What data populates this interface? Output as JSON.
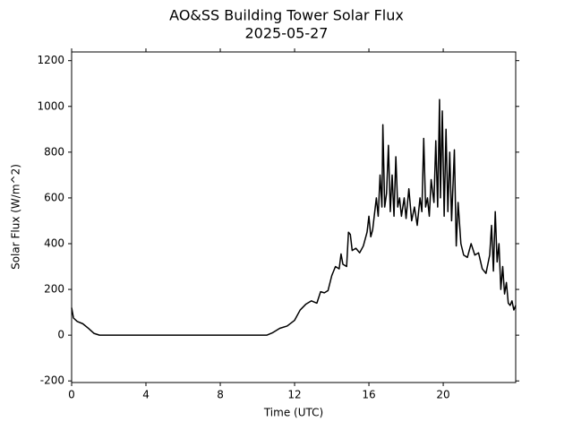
{
  "chart_data": {
    "type": "line",
    "title": "AO&SS Building Tower Solar Flux",
    "subtitle": "2025-05-27",
    "x_label": "Time (UTC)",
    "y_label": "Solar Flux (W/m^2)",
    "xlim": [
      0,
      23.9
    ],
    "ylim": [
      -207,
      1238
    ],
    "xticks": [
      0,
      4,
      8,
      12,
      16,
      20
    ],
    "yticks": [
      -200,
      0,
      200,
      400,
      600,
      800,
      1000,
      1200
    ],
    "grid": false,
    "series": [
      {
        "name": "Solar Flux",
        "color": "#000000",
        "x": [
          0,
          0.1,
          0.3,
          0.6,
          0.9,
          1.2,
          1.5,
          10.5,
          10.8,
          11.2,
          11.6,
          12,
          12.3,
          12.6,
          12.9,
          13.2,
          13.4,
          13.6,
          13.8,
          14,
          14.2,
          14.4,
          14.5,
          14.6,
          14.8,
          14.9,
          15.0,
          15.1,
          15.3,
          15.5,
          15.7,
          15.9,
          16.0,
          16.1,
          16.2,
          16.4,
          16.5,
          16.6,
          16.7,
          16.75,
          16.85,
          16.95,
          17.05,
          17.15,
          17.25,
          17.35,
          17.45,
          17.55,
          17.65,
          17.75,
          17.9,
          18.0,
          18.15,
          18.3,
          18.45,
          18.6,
          18.75,
          18.85,
          18.95,
          19.05,
          19.15,
          19.25,
          19.35,
          19.5,
          19.6,
          19.7,
          19.8,
          19.85,
          19.95,
          20.05,
          20.15,
          20.25,
          20.35,
          20.45,
          20.6,
          20.7,
          20.8,
          20.95,
          21.1,
          21.3,
          21.5,
          21.7,
          21.9,
          22.1,
          22.3,
          22.5,
          22.6,
          22.7,
          22.8,
          22.9,
          23.0,
          23.1,
          23.2,
          23.3,
          23.4,
          23.5,
          23.6,
          23.7,
          23.8,
          23.9
        ],
        "values": [
          120,
          75,
          60,
          50,
          30,
          8,
          0,
          0,
          10,
          30,
          40,
          65,
          110,
          135,
          150,
          140,
          190,
          185,
          195,
          260,
          300,
          290,
          355,
          310,
          300,
          450,
          440,
          370,
          380,
          360,
          390,
          450,
          520,
          430,
          460,
          600,
          520,
          700,
          560,
          920,
          560,
          620,
          830,
          540,
          700,
          520,
          780,
          560,
          600,
          520,
          600,
          510,
          640,
          500,
          560,
          480,
          600,
          540,
          860,
          560,
          600,
          520,
          680,
          580,
          850,
          560,
          1030,
          600,
          980,
          520,
          900,
          540,
          800,
          500,
          810,
          390,
          580,
          400,
          350,
          340,
          400,
          350,
          360,
          290,
          270,
          350,
          480,
          280,
          540,
          320,
          400,
          200,
          300,
          180,
          230,
          140,
          130,
          150,
          110,
          130
        ]
      }
    ]
  }
}
